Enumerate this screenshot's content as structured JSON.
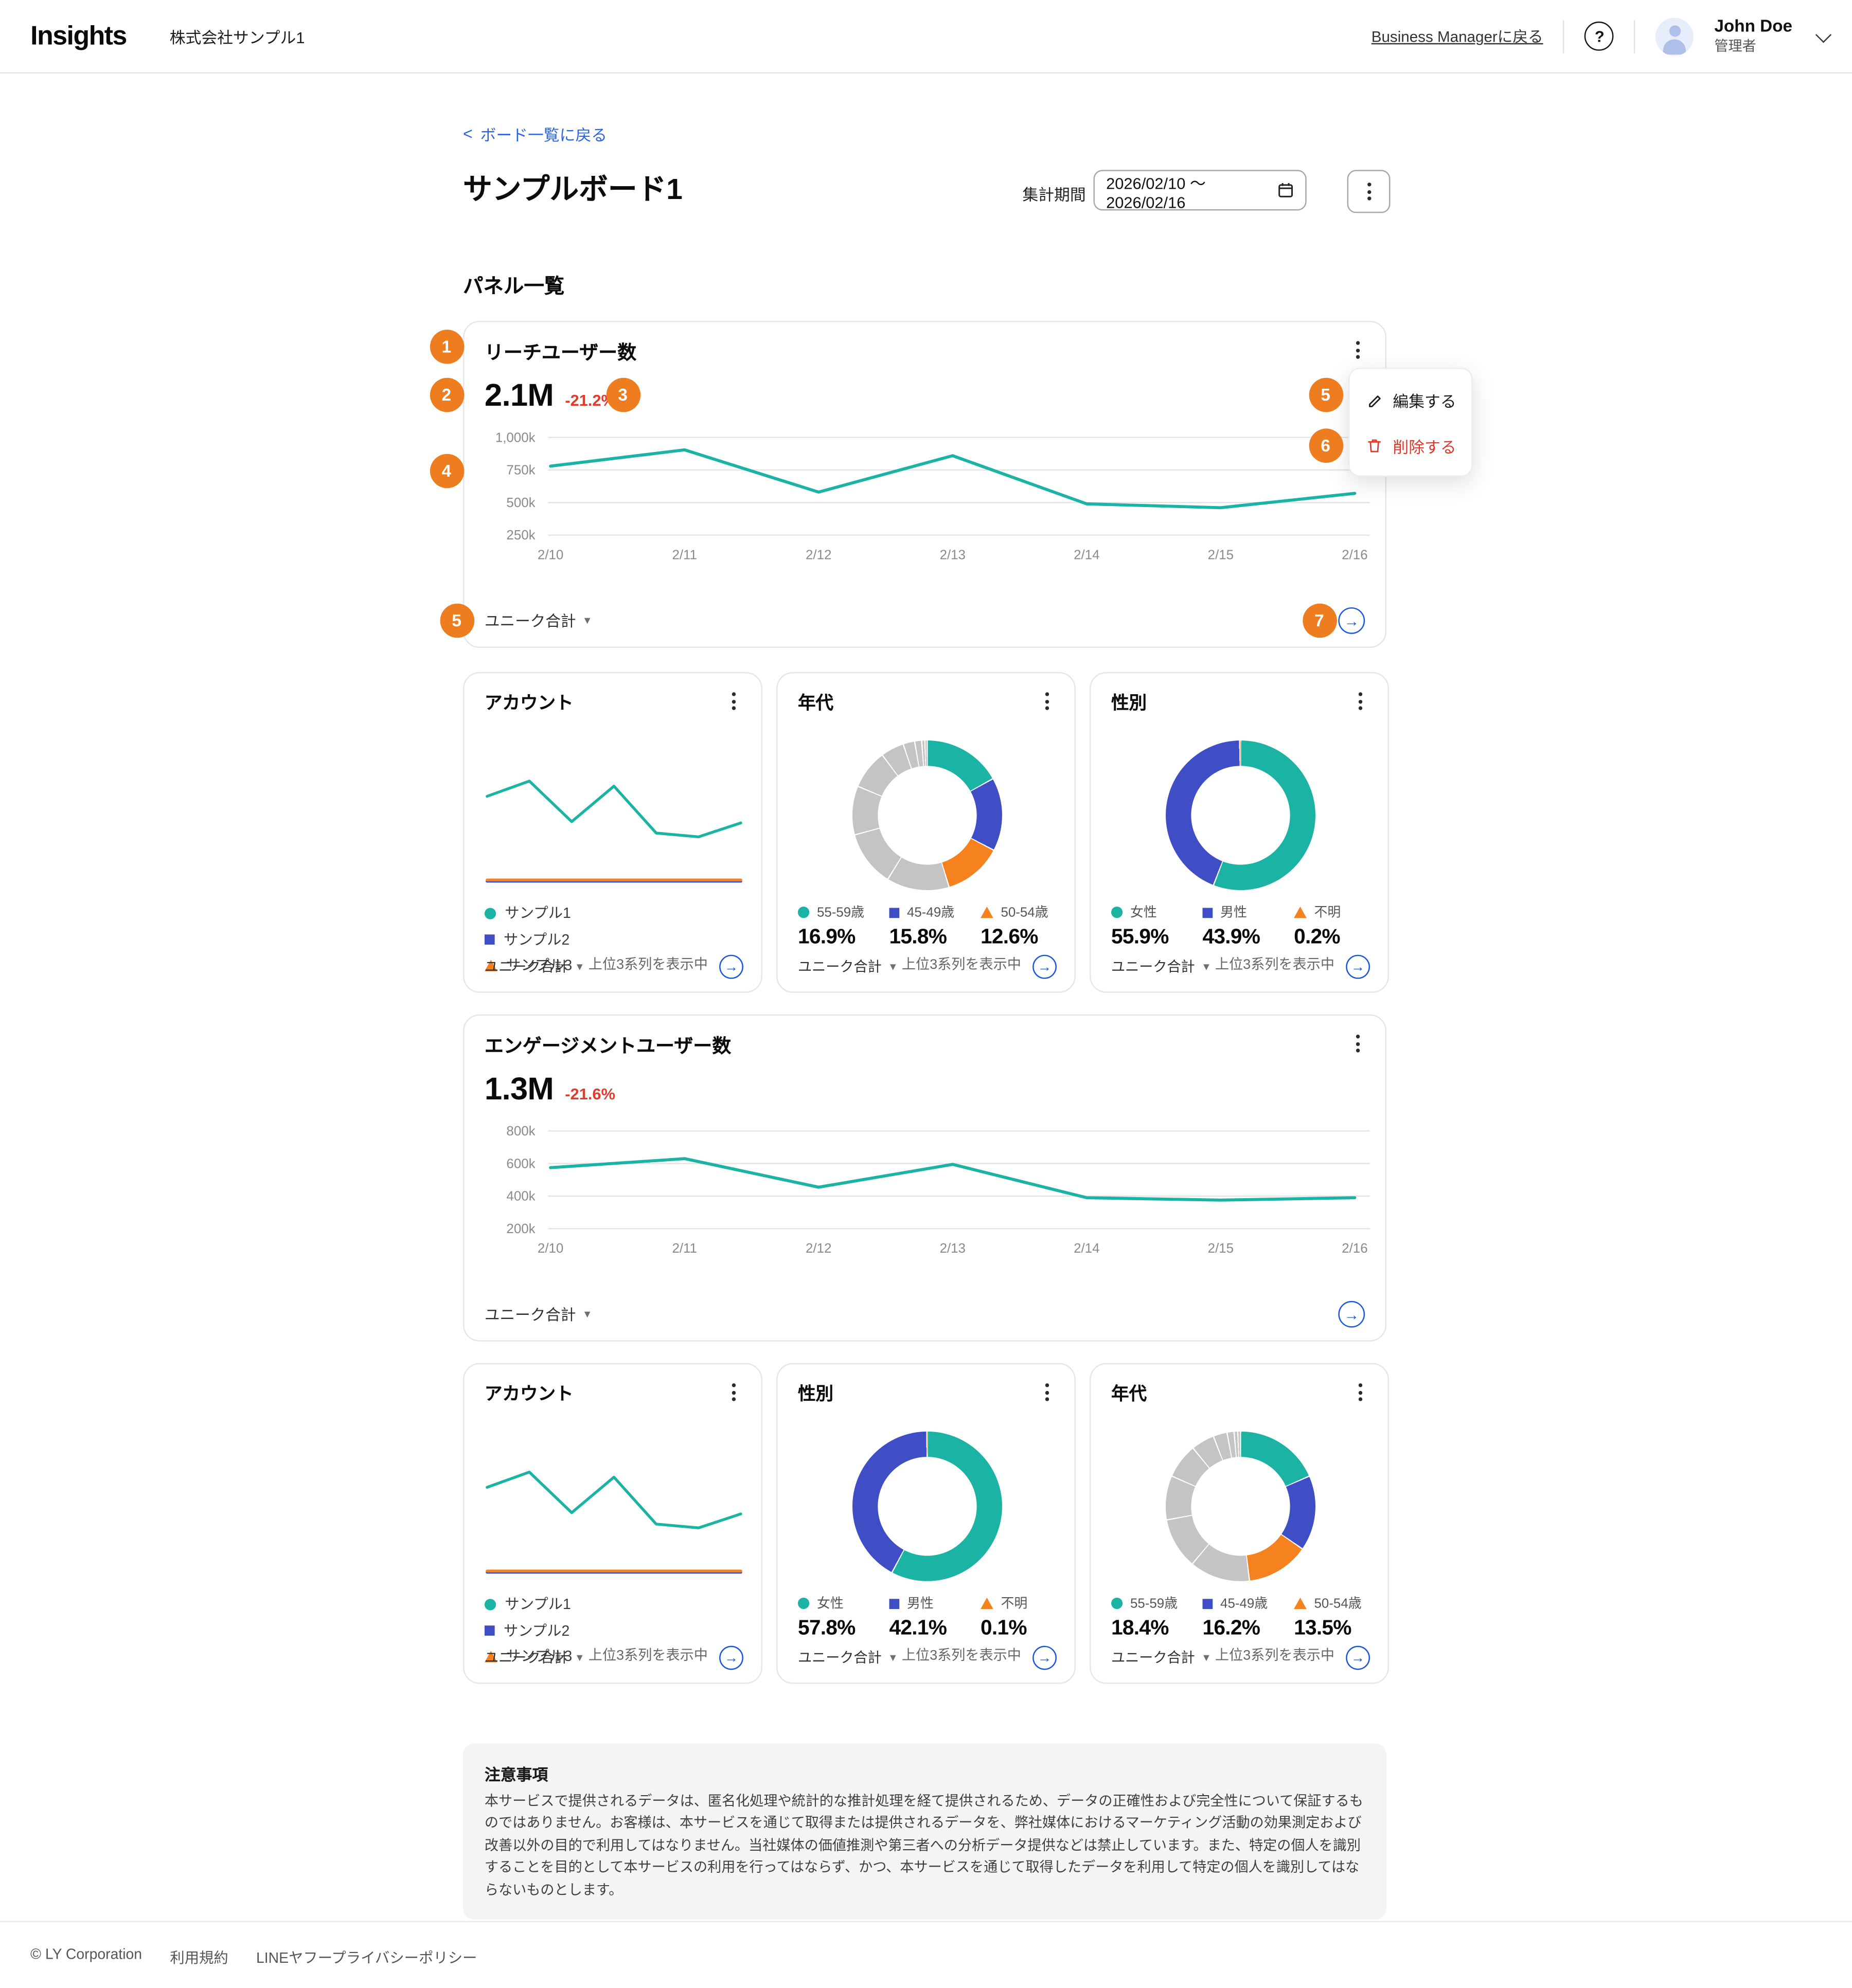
{
  "colors": {
    "teal": "#1ab3a4",
    "indigo": "#3f4ec4",
    "orange": "#f5821e",
    "gray": "#c4c4c4",
    "badge": "#ed7d1f",
    "red": "#e23b2e",
    "link": "#2b66e0",
    "arrow": "#1a56db"
  },
  "header": {
    "logo": "Insights",
    "company": "株式会社サンプル1",
    "bm_link": "Business Managerに戻る",
    "help": "?",
    "user_name": "John Doe",
    "user_role": "管理者"
  },
  "board": {
    "back_label": "ボード一覧に戻る",
    "back_arrow": "<",
    "title": "サンプルボード1",
    "period_label": "集計期間",
    "period_value": "2026/02/10 ～ 2026/02/16",
    "panels_heading": "パネル一覧"
  },
  "menu": {
    "edit": "編集する",
    "delete": "削除する"
  },
  "badges": [
    "1",
    "2",
    "3",
    "4",
    "5",
    "6",
    "5",
    "7"
  ],
  "common": {
    "unique": "ユニーク合計",
    "caret": "▼",
    "top3": "上位3系列を表示中",
    "arrow": "→"
  },
  "panels": {
    "reach": {
      "title": "リーチユーザー数",
      "value": "2.1M",
      "delta": "-21.2%"
    },
    "engagement": {
      "title": "エンゲージメントユーザー数",
      "value": "1.3M",
      "delta": "-21.6%"
    },
    "account": {
      "title": "アカウント",
      "legend": [
        {
          "label": "サンプル1"
        },
        {
          "label": "サンプル2"
        },
        {
          "label": "サンプル3"
        }
      ]
    },
    "age_top": {
      "title": "年代",
      "legend": [
        {
          "label": "55-59歳",
          "value": "16.9%"
        },
        {
          "label": "45-49歳",
          "value": "15.8%"
        },
        {
          "label": "50-54歳",
          "value": "12.6%"
        }
      ]
    },
    "gender_top": {
      "title": "性別",
      "legend": [
        {
          "label": "女性",
          "value": "55.9%"
        },
        {
          "label": "男性",
          "value": "43.9%"
        },
        {
          "label": "不明",
          "value": "0.2%"
        }
      ]
    },
    "gender_bottom": {
      "title": "性別",
      "legend": [
        {
          "label": "女性",
          "value": "57.8%"
        },
        {
          "label": "男性",
          "value": "42.1%"
        },
        {
          "label": "不明",
          "value": "0.1%"
        }
      ]
    },
    "age_bottom": {
      "title": "年代",
      "legend": [
        {
          "label": "55-59歳",
          "value": "18.4%"
        },
        {
          "label": "45-49歳",
          "value": "16.2%"
        },
        {
          "label": "50-54歳",
          "value": "13.5%"
        }
      ]
    }
  },
  "charts": {
    "reach": {
      "type": "line",
      "x": [
        "2/10",
        "2/11",
        "2/12",
        "2/13",
        "2/14",
        "2/15",
        "2/16"
      ],
      "values": [
        780,
        905,
        580,
        860,
        490,
        460,
        570
      ],
      "unit": "k",
      "ymin": 250,
      "ymax": 1000,
      "grid": [
        {
          "v": 1000,
          "label": "1,000k"
        },
        {
          "v": 750,
          "label": "750k"
        },
        {
          "v": 500,
          "label": "500k"
        },
        {
          "v": 250,
          "label": "250k"
        }
      ],
      "series_color": "teal"
    },
    "engagement": {
      "type": "line",
      "x": [
        "2/10",
        "2/11",
        "2/12",
        "2/13",
        "2/14",
        "2/15",
        "2/16"
      ],
      "values": [
        575,
        630,
        455,
        595,
        390,
        375,
        390
      ],
      "unit": "k",
      "ymin": 200,
      "ymax": 800,
      "grid": [
        {
          "v": 800,
          "label": "800k"
        },
        {
          "v": 600,
          "label": "600k"
        },
        {
          "v": 400,
          "label": "400k"
        },
        {
          "v": 200,
          "label": "200k"
        }
      ],
      "series_color": "teal"
    },
    "account_mini": {
      "type": "line-mini",
      "ymin": 0,
      "ymax": 130,
      "series": [
        {
          "color": "indigo",
          "flat": 11
        },
        {
          "color": "orange",
          "flat": 12
        },
        {
          "color": "teal",
          "values": [
            78,
            90,
            58,
            86,
            49,
            46,
            57
          ]
        }
      ]
    }
  },
  "donuts": {
    "age_top": {
      "segments": [
        [
          "teal",
          16.9
        ],
        [
          "indigo",
          15.8
        ],
        [
          "orange",
          12.6
        ],
        [
          "gray",
          13.5
        ],
        [
          "gray",
          12
        ],
        [
          "gray",
          10.5
        ],
        [
          "gray",
          8.5
        ],
        [
          "gray",
          5
        ],
        [
          "gray",
          2.5
        ],
        [
          "gray",
          1.5
        ],
        [
          "gray",
          0.7
        ],
        [
          "gray",
          0.5
        ]
      ]
    },
    "gender_top": {
      "segments": [
        [
          "teal",
          55.9
        ],
        [
          "indigo",
          43.9
        ],
        [
          "orange",
          0.2
        ]
      ]
    },
    "gender_bottom": {
      "segments": [
        [
          "teal",
          57.8
        ],
        [
          "indigo",
          42.1
        ],
        [
          "orange",
          0.1
        ]
      ]
    },
    "age_bottom": {
      "segments": [
        [
          "teal",
          18.4
        ],
        [
          "indigo",
          16.2
        ],
        [
          "orange",
          13.5
        ],
        [
          "gray",
          13
        ],
        [
          "gray",
          11
        ],
        [
          "gray",
          9.5
        ],
        [
          "gray",
          7.5
        ],
        [
          "gray",
          5
        ],
        [
          "gray",
          3
        ],
        [
          "gray",
          1.5
        ],
        [
          "gray",
          0.8
        ],
        [
          "gray",
          0.6
        ]
      ]
    }
  },
  "notice": {
    "title": "注意事項",
    "body": "本サービスで提供されるデータは、匿名化処理や統計的な推計処理を経て提供されるため、データの正確性および完全性について保証するものではありません。お客様は、本サービスを通じて取得または提供されるデータを、弊社媒体におけるマーケティング活動の効果測定および改善以外の目的で利用してはなりません。当社媒体の価値推測や第三者への分析データ提供などは禁止しています。また、特定の個人を識別することを目的として本サービスの利用を行ってはならず、かつ、本サービスを通じて取得したデータを利用して特定の個人を識別してはならないものとします。"
  },
  "footer": {
    "copyright": "© LY Corporation",
    "terms": "利用規約",
    "privacy": "LINEヤフープライバシーポリシー"
  }
}
